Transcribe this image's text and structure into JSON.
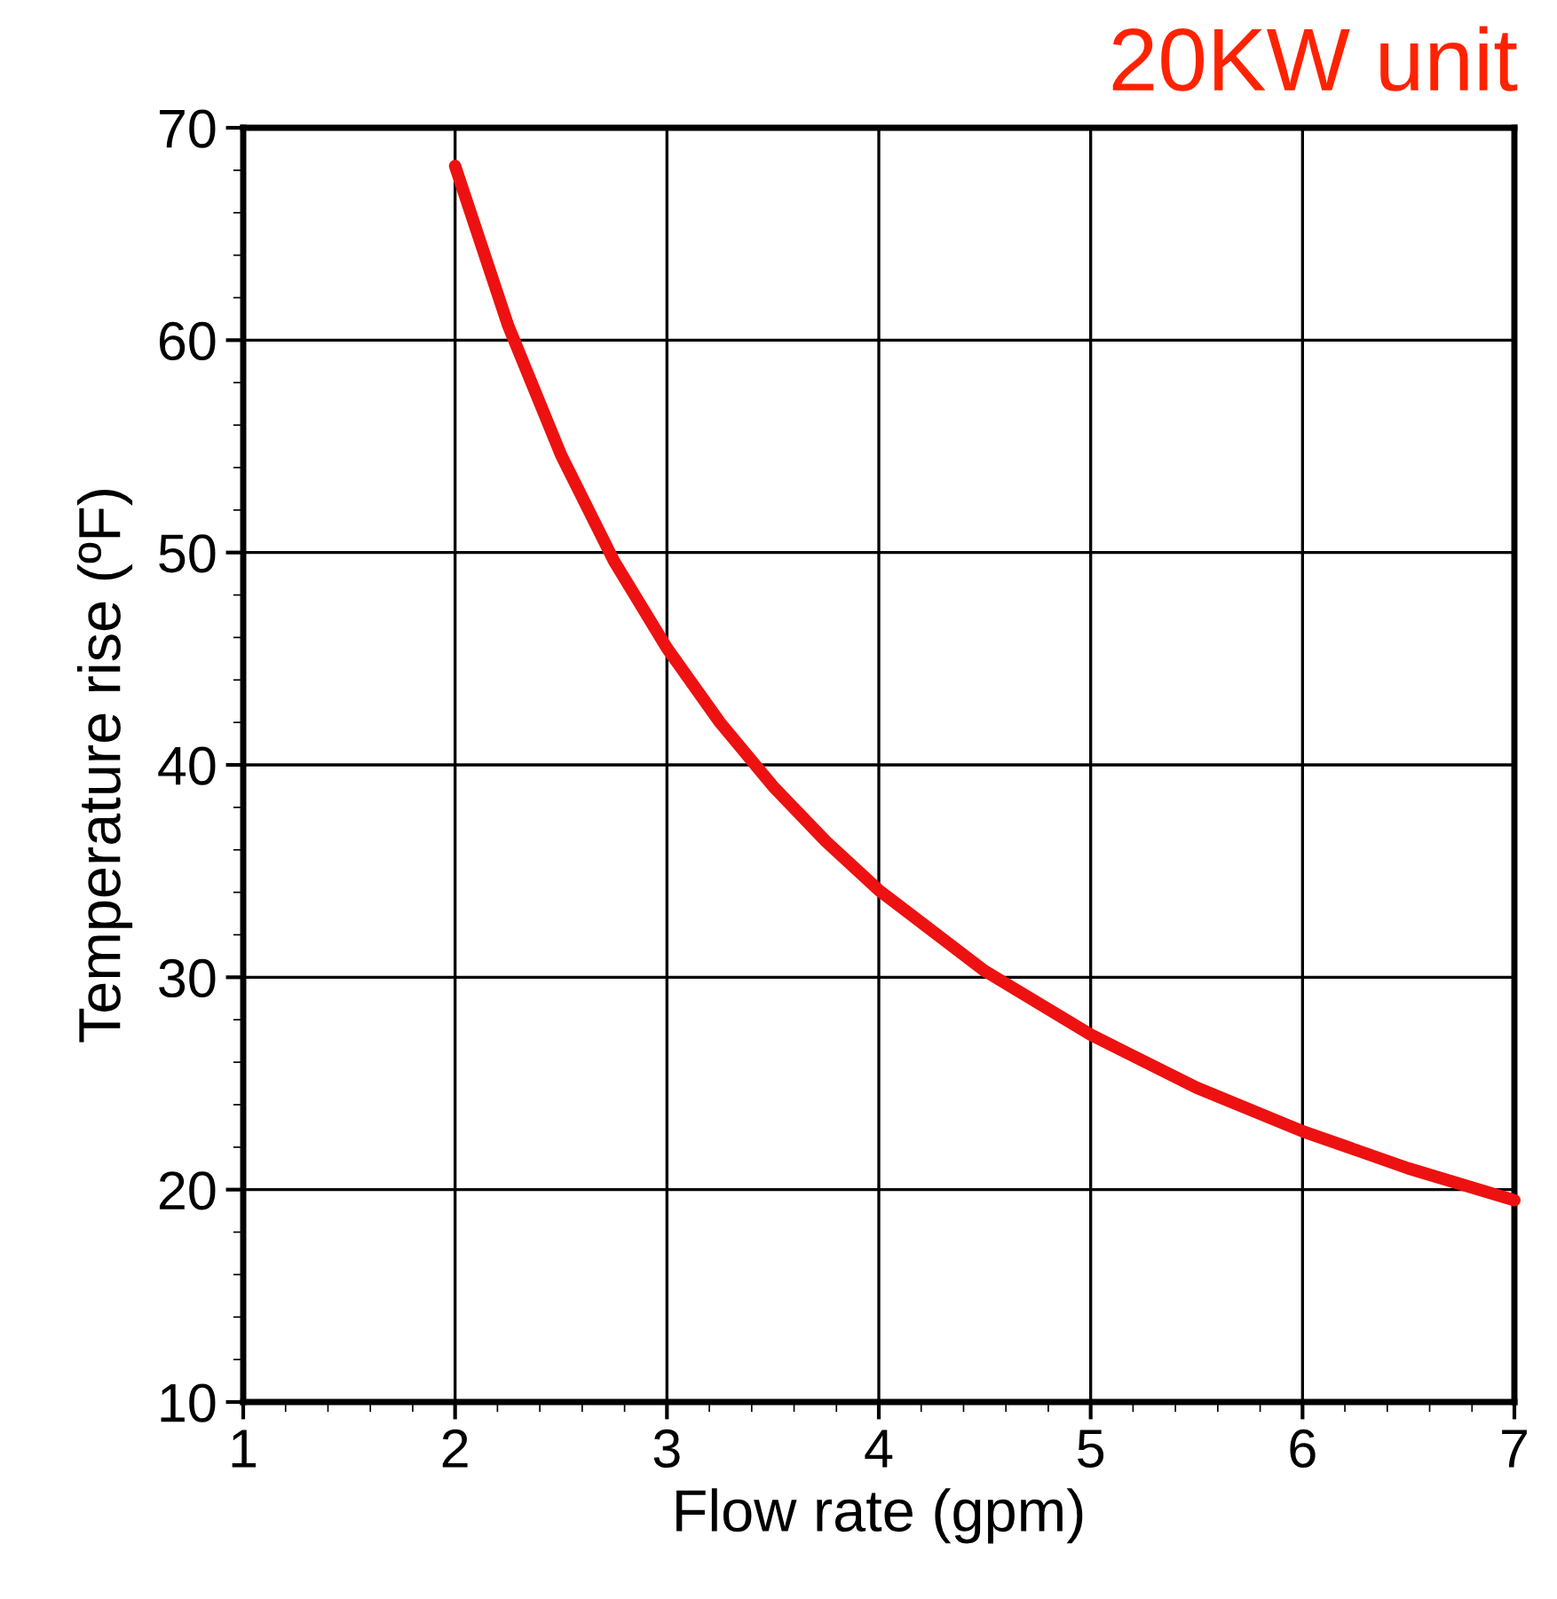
{
  "chart_data": {
    "type": "line",
    "title": "20KW unit",
    "xlabel": "Flow rate (gpm)",
    "ylabel": "Temperature rise (ºF)",
    "x": [
      2,
      2.25,
      2.5,
      2.75,
      3,
      3.25,
      3.5,
      3.75,
      4,
      4.5,
      5,
      5.5,
      6,
      6.5,
      7
    ],
    "series": [
      {
        "color": "#ee1111",
        "values": [
          68.2,
          60.7,
          54.6,
          49.6,
          45.5,
          42,
          39,
          36.4,
          34.1,
          30.3,
          27.3,
          24.8,
          22.75,
          21,
          19.5
        ]
      }
    ],
    "xlim": [
      1,
      7
    ],
    "ylim": [
      10,
      70
    ],
    "xticks": [
      1,
      2,
      3,
      4,
      5,
      6,
      7
    ],
    "yticks": [
      10,
      20,
      30,
      40,
      50,
      60,
      70
    ],
    "grid": true,
    "marker": "none",
    "line_style": "solid"
  }
}
